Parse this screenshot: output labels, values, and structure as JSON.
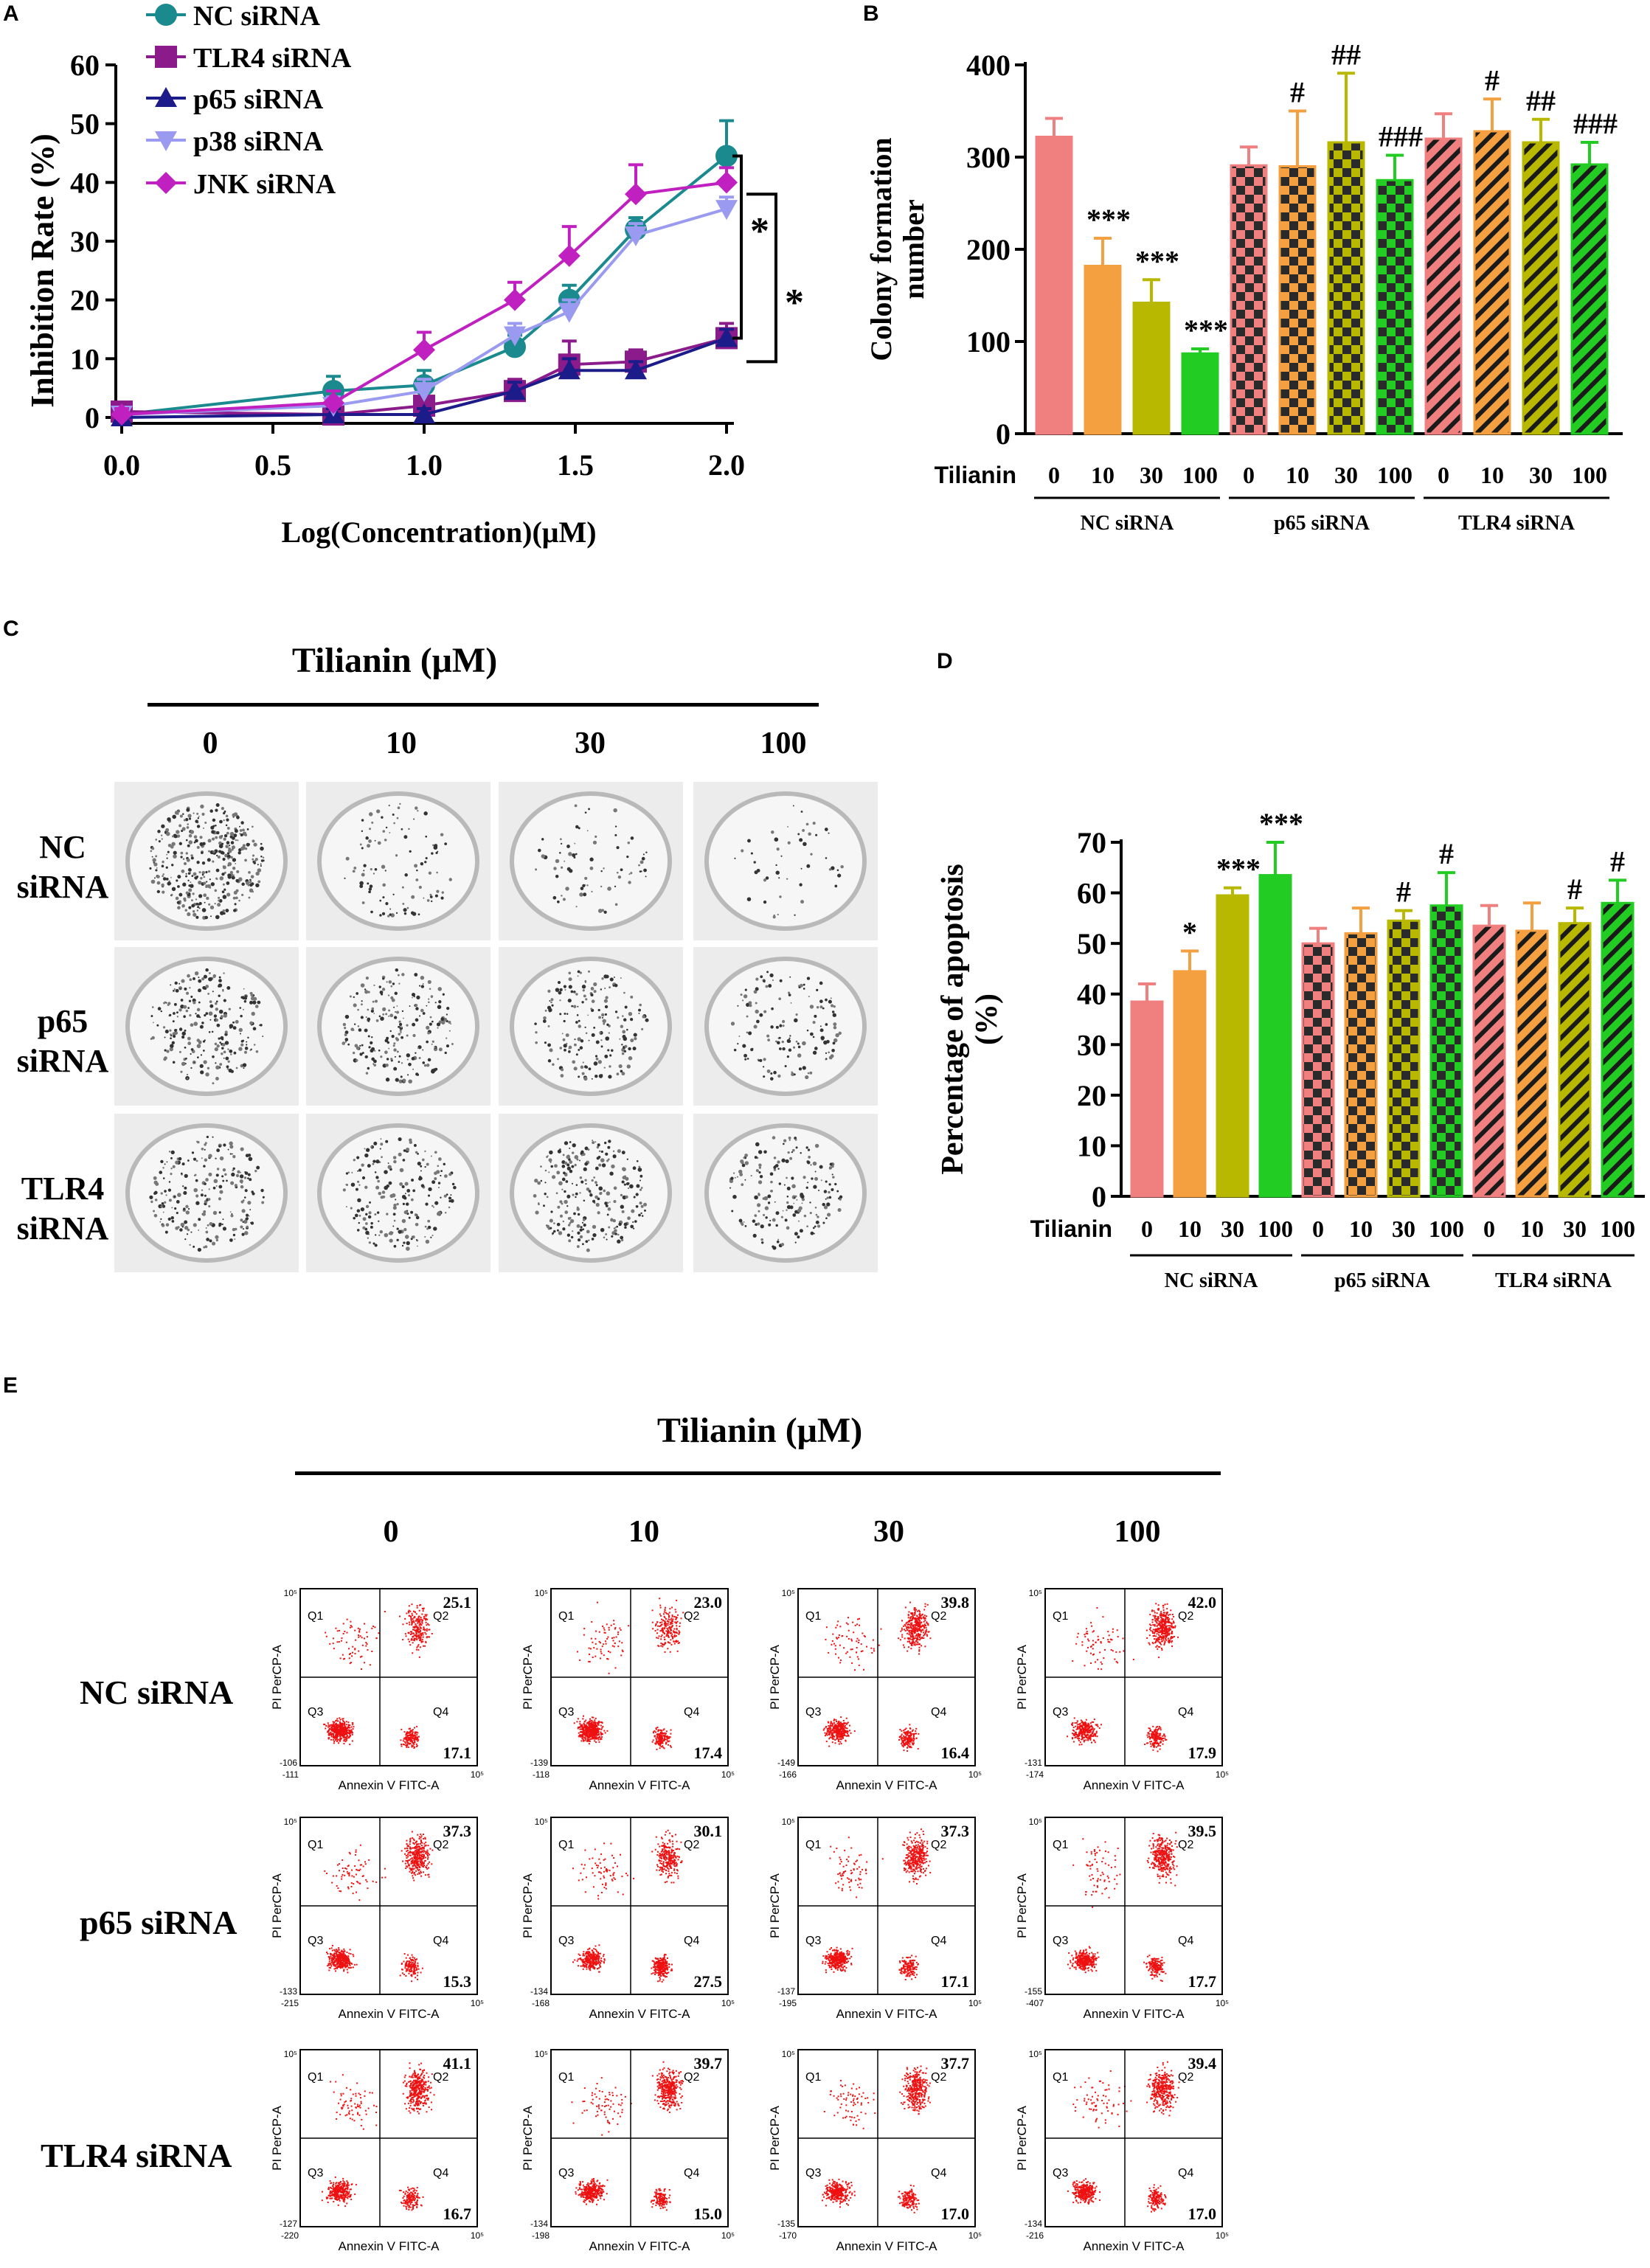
{
  "panels": {
    "A": "A",
    "B": "B",
    "C": "C",
    "D": "D",
    "E": "E"
  },
  "colors": {
    "nc": "#1a8a8e",
    "tlr4": "#8b1a8b",
    "p65": "#1b1b8a",
    "p38": "#9a9af0",
    "jnk": "#c020c0",
    "bar0": "#f08080",
    "bar10": "#f5a040",
    "bar30": "#b8b800",
    "bar100": "#22cc22",
    "dots": "#ee1111"
  },
  "chart_data": [
    {
      "id": "A",
      "type": "line",
      "xlabel": "Log(Concentration)(μM)",
      "ylabel": "Inhibition Rate (%)",
      "xlim": [
        0,
        2.0
      ],
      "ylim": [
        0,
        60
      ],
      "xticks": [
        "0.0",
        "0.5",
        "1.0",
        "1.5",
        "2.0"
      ],
      "yticks": [
        "0",
        "10",
        "20",
        "30",
        "40",
        "50",
        "60"
      ],
      "x": [
        0,
        0.7,
        1.0,
        1.3,
        1.48,
        1.7,
        2.0
      ],
      "series": [
        {
          "name": "NC siRNA",
          "marker": "circle",
          "values": [
            0.5,
            4.5,
            5.5,
            12,
            20,
            32,
            44.5
          ],
          "errors": [
            1,
            2.5,
            2.5,
            2,
            2.5,
            2,
            6
          ]
        },
        {
          "name": "TLR4 siRNA",
          "marker": "square",
          "values": [
            1,
            0.5,
            2,
            4.5,
            9,
            9.5,
            13.5
          ],
          "errors": [
            1.5,
            1,
            1.5,
            2,
            4,
            2,
            2.5
          ]
        },
        {
          "name": "p65 siRNA",
          "marker": "triangle-up",
          "values": [
            0,
            0.5,
            0.5,
            4.5,
            8,
            8,
            13.5
          ],
          "errors": [
            1,
            1,
            1,
            1.5,
            2,
            1.5,
            1.5
          ]
        },
        {
          "name": "p38 siRNA",
          "marker": "triangle-down",
          "values": [
            0.5,
            2,
            4.5,
            14,
            18,
            31,
            35.5
          ],
          "errors": [
            1,
            1.5,
            2,
            2,
            2,
            2,
            2
          ]
        },
        {
          "name": "JNK siRNA",
          "marker": "diamond",
          "values": [
            0.5,
            2.5,
            11.5,
            20,
            27.5,
            38,
            40
          ],
          "errors": [
            1,
            2,
            3,
            3,
            5,
            5,
            2.5
          ]
        }
      ],
      "significance": [
        "*",
        "*"
      ]
    },
    {
      "id": "B",
      "type": "bar",
      "ylabel": "Colony formation number",
      "ylabel_lines": [
        "Colony formation",
        "number"
      ],
      "ylim": [
        0,
        400
      ],
      "yticks": [
        "0",
        "100",
        "200",
        "300",
        "400"
      ],
      "xtitle": "Tilianin",
      "groups": [
        {
          "name": "NC siRNA",
          "pattern": "solid",
          "categories": [
            "0",
            "10",
            "30",
            "100"
          ],
          "values": [
            322,
            182,
            142,
            87
          ],
          "errors": [
            20,
            30,
            25,
            5
          ],
          "sig": [
            "",
            "***",
            "***",
            "***"
          ]
        },
        {
          "name": "p65 siRNA",
          "pattern": "checker",
          "categories": [
            "0",
            "10",
            "30",
            "100"
          ],
          "values": [
            291,
            290,
            316,
            275
          ],
          "errors": [
            20,
            60,
            75,
            27
          ],
          "sig": [
            "",
            "#",
            "##",
            "###"
          ]
        },
        {
          "name": "TLR4 siRNA",
          "pattern": "stripe",
          "categories": [
            "0",
            "10",
            "30",
            "100"
          ],
          "values": [
            320,
            328,
            316,
            292
          ],
          "errors": [
            27,
            35,
            25,
            24
          ],
          "sig": [
            "",
            "#",
            "##",
            "###"
          ]
        }
      ]
    },
    {
      "id": "D",
      "type": "bar",
      "ylabel": "Percentage of apoptosis (%)",
      "ylabel_lines": [
        "Percentage of apoptosis",
        "(%)"
      ],
      "ylim": [
        0,
        70
      ],
      "yticks": [
        "0",
        "10",
        "20",
        "30",
        "40",
        "50",
        "60",
        "70"
      ],
      "xtitle": "Tilianin",
      "groups": [
        {
          "name": "NC siRNA",
          "pattern": "solid",
          "categories": [
            "0",
            "10",
            "30",
            "100"
          ],
          "values": [
            38.5,
            44.5,
            59.5,
            63.5
          ],
          "errors": [
            3.5,
            4,
            1.5,
            6.5
          ],
          "sig": [
            "",
            "*",
            "***",
            "***"
          ]
        },
        {
          "name": "p65 siRNA",
          "pattern": "checker",
          "categories": [
            "0",
            "10",
            "30",
            "100"
          ],
          "values": [
            50,
            52,
            54.5,
            57.5
          ],
          "errors": [
            3,
            5,
            2,
            6.5
          ],
          "sig": [
            "",
            "",
            "#",
            "#"
          ]
        },
        {
          "name": "TLR4 siRNA",
          "pattern": "stripe",
          "categories": [
            "0",
            "10",
            "30",
            "100"
          ],
          "values": [
            53.5,
            52.5,
            54,
            58
          ],
          "errors": [
            4,
            5.5,
            3,
            4.5
          ],
          "sig": [
            "",
            "",
            "#",
            "#"
          ]
        }
      ]
    }
  ],
  "panelC": {
    "header": "Tilianin (μM)",
    "columns": [
      "0",
      "10",
      "30",
      "100"
    ],
    "rows": [
      {
        "line1": "NC",
        "line2": "siRNA"
      },
      {
        "line1": "p65",
        "line2": "siRNA"
      },
      {
        "line1": "TLR4",
        "line2": "siRNA"
      }
    ]
  },
  "panelE": {
    "header": "Tilianin (μM)",
    "columns": [
      "0",
      "10",
      "30",
      "100"
    ],
    "rows": [
      "NC siRNA",
      "p65 siRNA",
      "TLR4 siRNA"
    ],
    "xaxis": "Annexin V FITC-A",
    "yaxis": "PI PerCP-A",
    "quadrants": [
      "Q1",
      "Q2",
      "Q3",
      "Q4"
    ],
    "ytick_top": "10⁵",
    "xtick_right": "10⁵",
    "q2": [
      [
        "25.1",
        "23.0",
        "39.8",
        "42.0"
      ],
      [
        "37.3",
        "30.1",
        "37.3",
        "39.5"
      ],
      [
        "41.1",
        "39.7",
        "37.7",
        "39.4"
      ]
    ],
    "q4": [
      [
        "17.1",
        "17.4",
        "16.4",
        "17.9"
      ],
      [
        "15.3",
        "27.5",
        "17.1",
        "17.7"
      ],
      [
        "16.7",
        "15.0",
        "17.0",
        "17.0"
      ]
    ],
    "xmin": [
      [
        "-111",
        "-118",
        "-166",
        "-174"
      ],
      [
        "-215",
        "-168",
        "-195",
        "-407"
      ],
      [
        "-220",
        "-198",
        "-170",
        "-216"
      ]
    ],
    "ymin": [
      [
        "-106",
        "-139",
        "-149",
        "-131"
      ],
      [
        "-133",
        "-134",
        "-137",
        "-155"
      ],
      [
        "-127",
        "-134",
        "-135",
        "-134"
      ]
    ]
  }
}
